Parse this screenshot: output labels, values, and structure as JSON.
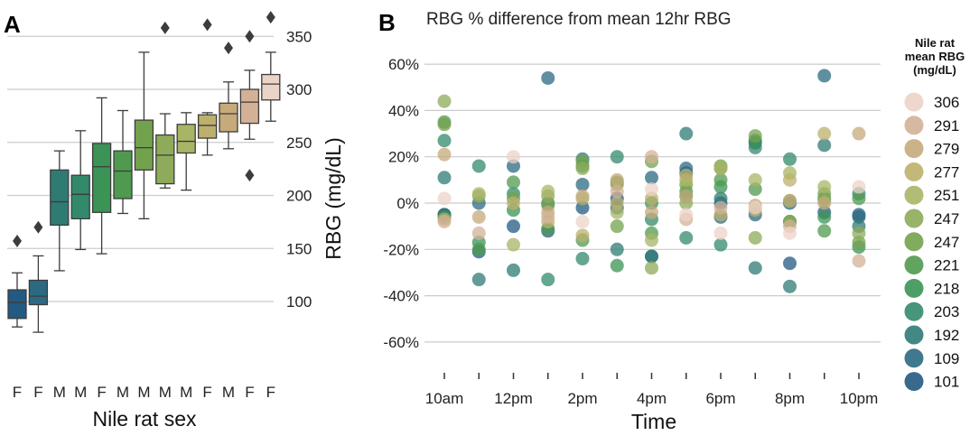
{
  "chart_data": [
    {
      "panel_label": "A",
      "type": "box",
      "title": "",
      "xlabel": "Nile rat sex",
      "ylabel": "RBG (mg/dL)",
      "y_axis_side": "right",
      "ylim": [
        65,
        380
      ],
      "yticks": [
        100,
        150,
        200,
        250,
        300,
        350
      ],
      "grid": true,
      "legend": "none",
      "categories": [
        "F",
        "F",
        "M",
        "M",
        "F",
        "M",
        "M",
        "M",
        "M",
        "F",
        "M",
        "F",
        "F"
      ],
      "boxes": [
        {
          "color": "#235a82",
          "whisker_low": 76,
          "q1": 84,
          "median": 99,
          "q3": 111,
          "whisker_high": 127,
          "outliers": [
            157
          ]
        },
        {
          "color": "#2b6a82",
          "whisker_low": 71,
          "q1": 97,
          "median": 105,
          "q3": 120,
          "whisker_high": 143,
          "outliers": [
            170
          ]
        },
        {
          "color": "#2f7b74",
          "whisker_low": 129,
          "q1": 172,
          "median": 194,
          "q3": 224,
          "whisker_high": 242,
          "outliers": []
        },
        {
          "color": "#33896c",
          "whisker_low": 149,
          "q1": 178,
          "median": 201,
          "q3": 219,
          "whisker_high": 261,
          "outliers": []
        },
        {
          "color": "#3b9356",
          "whisker_low": 145,
          "q1": 184,
          "median": 227,
          "q3": 249,
          "whisker_high": 292,
          "outliers": []
        },
        {
          "color": "#4f9a4f",
          "whisker_low": 183,
          "q1": 197,
          "median": 223,
          "q3": 242,
          "whisker_high": 280,
          "outliers": []
        },
        {
          "color": "#73a24e",
          "whisker_low": 178,
          "q1": 224,
          "median": 245,
          "q3": 271,
          "whisker_high": 335,
          "outliers": []
        },
        {
          "color": "#8dab5a",
          "whisker_low": 207,
          "q1": 211,
          "median": 238,
          "q3": 257,
          "whisker_high": 277,
          "outliers": [
            358
          ]
        },
        {
          "color": "#a8b566",
          "whisker_low": 205,
          "q1": 240,
          "median": 251,
          "q3": 267,
          "whisker_high": 278,
          "outliers": []
        },
        {
          "color": "#bcb06c",
          "whisker_low": 238,
          "q1": 254,
          "median": 266,
          "q3": 276,
          "whisker_high": 278,
          "outliers": [
            361
          ]
        },
        {
          "color": "#c6aa7c",
          "whisker_low": 244,
          "q1": 260,
          "median": 277,
          "q3": 287,
          "whisker_high": 307,
          "outliers": [
            339
          ]
        },
        {
          "color": "#d3b197",
          "whisker_low": 253,
          "q1": 268,
          "median": 288,
          "q3": 300,
          "whisker_high": 318,
          "outliers": [
            219,
            350
          ]
        },
        {
          "color": "#ecd3c8",
          "whisker_low": 270,
          "q1": 290,
          "median": 305,
          "q3": 314,
          "whisker_high": 335,
          "outliers": [
            368
          ]
        }
      ]
    },
    {
      "panel_label": "B",
      "type": "scatter",
      "title": "RBG % difference from mean 12hr RBG",
      "xlabel": "Time",
      "ylabel": "",
      "xlim": [
        9.5,
        22.5
      ],
      "ylim": [
        -70,
        68
      ],
      "yticks": [
        -60,
        -40,
        -20,
        0,
        20,
        40,
        60
      ],
      "ytick_labels": [
        "-60%",
        "-40%",
        "-20%",
        "0%",
        "20%",
        "40%",
        "60%"
      ],
      "xtick_positions": [
        10,
        11,
        12,
        13,
        14,
        15,
        16,
        17,
        18,
        19,
        20,
        21,
        22
      ],
      "xtick_labels": [
        "10am",
        "",
        "12pm",
        "",
        "2pm",
        "",
        "4pm",
        "",
        "6pm",
        "",
        "8pm",
        "",
        "10pm"
      ],
      "grid": true,
      "legend": "right",
      "legend_title": "Nile rat\nmean RBG\n(mg/dL)",
      "series": [
        {
          "name": "306",
          "color": "#ecd3c8",
          "x": [
            10,
            12,
            14,
            16,
            17,
            18,
            19,
            20,
            22
          ],
          "y": [
            2,
            20,
            -8,
            6,
            -5,
            -13,
            -2,
            -13,
            7
          ]
        },
        {
          "name": "291",
          "color": "#d3b197",
          "x": [
            10,
            11,
            13,
            15,
            16,
            17,
            18,
            20,
            22
          ],
          "y": [
            -8,
            -13,
            -6,
            5,
            20,
            -7,
            -2,
            -10,
            -25
          ]
        },
        {
          "name": "279",
          "color": "#c6aa7c",
          "x": [
            10,
            11,
            13,
            14,
            15,
            16,
            17,
            19,
            20,
            21,
            22
          ],
          "y": [
            21,
            -6,
            -4,
            3,
            10,
            -4,
            3,
            -1,
            1,
            0,
            30
          ]
        },
        {
          "name": "277",
          "color": "#bcb06c",
          "x": [
            10,
            12,
            13,
            14,
            15,
            16,
            17,
            18,
            19,
            20,
            21
          ],
          "y": [
            -7,
            0,
            -8,
            -14,
            0,
            2,
            12,
            -5,
            -3,
            10,
            30
          ]
        },
        {
          "name": "251",
          "color": "#a8b566",
          "x": [
            11,
            12,
            13,
            14,
            15,
            16,
            17,
            18,
            19,
            20,
            21
          ],
          "y": [
            4,
            -18,
            5,
            2,
            -4,
            -16,
            10,
            15,
            10,
            13,
            7
          ]
        },
        {
          "name": "247",
          "color": "#8dab5a",
          "x": [
            10,
            11,
            13,
            14,
            15,
            16,
            17,
            18,
            19,
            20,
            21,
            22
          ],
          "y": [
            44,
            3,
            3,
            15,
            8,
            -28,
            0,
            15,
            -15,
            -8,
            1,
            -13
          ]
        },
        {
          "name": "247",
          "color": "#73a24e",
          "x": [
            10,
            12,
            13,
            14,
            15,
            16,
            17,
            18,
            19,
            20,
            21,
            22
          ],
          "y": [
            34,
            2,
            -1,
            18,
            -10,
            18,
            8,
            16,
            29,
            1,
            4,
            -17
          ]
        },
        {
          "name": "221",
          "color": "#4f9a4f",
          "x": [
            10,
            11,
            12,
            13,
            14,
            15,
            16,
            17,
            18,
            19,
            20,
            21,
            22
          ],
          "y": [
            35,
            -20,
            9,
            -11,
            -16,
            9,
            -13,
            5,
            10,
            6,
            -8,
            -12,
            2
          ]
        },
        {
          "name": "218",
          "color": "#3b9356",
          "x": [
            10,
            11,
            12,
            14,
            15,
            16,
            17,
            18,
            19,
            20,
            21,
            22
          ],
          "y": [
            -6,
            -17,
            -3,
            16,
            -27,
            0,
            3,
            7,
            27,
            -8,
            -6,
            -19
          ]
        },
        {
          "name": "203",
          "color": "#33896c",
          "x": [
            10,
            11,
            12,
            13,
            14,
            15,
            16,
            17,
            18,
            19,
            20,
            21,
            22
          ],
          "y": [
            27,
            16,
            4,
            -33,
            -24,
            20,
            -7,
            -15,
            -18,
            24,
            19,
            2,
            4
          ]
        },
        {
          "name": "192",
          "color": "#2f7b74",
          "x": [
            10,
            11,
            12,
            13,
            14,
            15,
            16,
            17,
            18,
            19,
            20,
            21,
            22
          ],
          "y": [
            11,
            -33,
            -29,
            0,
            19,
            -20,
            -23,
            30,
            2,
            -28,
            -36,
            25,
            -10
          ]
        },
        {
          "name": "109",
          "color": "#2b6a82",
          "x": [
            10,
            11,
            12,
            13,
            14,
            15,
            16,
            17,
            18,
            19,
            20,
            21,
            22
          ],
          "y": [
            -5,
            0,
            16,
            54,
            8,
            -2,
            11,
            15,
            -6,
            -5,
            0,
            55,
            -6
          ]
        },
        {
          "name": "101",
          "color": "#235a82",
          "x": [
            10,
            11,
            12,
            13,
            14,
            15,
            16,
            17,
            18,
            19,
            20,
            21,
            22
          ],
          "y": [
            -5,
            -21,
            -10,
            -12,
            -2,
            2,
            -23,
            13,
            0,
            26,
            -26,
            -4,
            -5
          ]
        }
      ]
    }
  ]
}
